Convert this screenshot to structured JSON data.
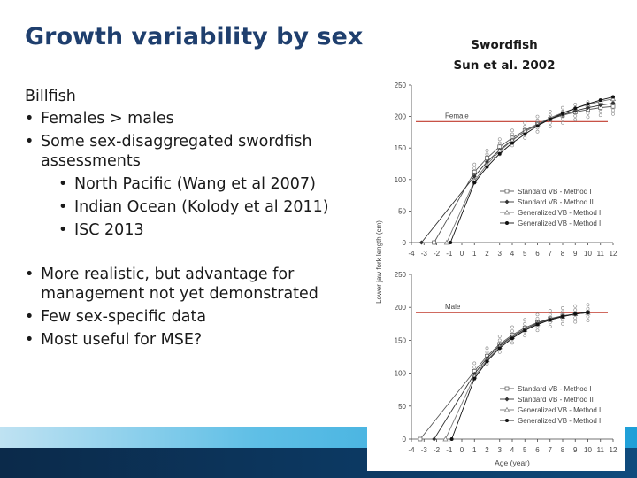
{
  "slide": {
    "title": "Growth variability by sex",
    "figure_caption_line1": "Swordfish",
    "figure_caption_line2": "Sun et al. 2002"
  },
  "content": {
    "heading": "Billfish",
    "bullets": [
      "Females > males",
      "Some sex-disaggregated swordfish assessments"
    ],
    "sub_bullets": [
      "North Pacific (Wang et al 2007)",
      "Indian Ocean (Kolody et al 2011)",
      "ISC 2013"
    ],
    "bullets2": [
      "More realistic, but advantage for management not yet demonstrated",
      "Few sex-specific data",
      "Most useful for MSE?"
    ]
  },
  "colors": {
    "title": "#1f3f6e",
    "reference_line": "#c0392b",
    "band_light": "#5fbfe6",
    "band_dark": "#0c3a64"
  },
  "chart_data": [
    {
      "type": "line",
      "panel_label": "Female",
      "ylabel": "Lower jaw fork length (cm)",
      "xlabel": "",
      "xlim": [
        -4,
        12
      ],
      "ylim": [
        0,
        250
      ],
      "x_ticks": [
        -4,
        -3,
        -2,
        -1,
        0,
        1,
        2,
        3,
        4,
        5,
        6,
        7,
        8,
        9,
        10,
        11,
        12
      ],
      "y_ticks": [
        0,
        50,
        100,
        150,
        200,
        250
      ],
      "reference_line_y": 192,
      "legend_position": "center-right",
      "series": [
        {
          "name": "Standard VB - Method I",
          "marker": "open-square",
          "x": [
            -2.2,
            1,
            2,
            3,
            4,
            5,
            6,
            7,
            8,
            9,
            10,
            11,
            12
          ],
          "y": [
            0,
            112,
            134,
            152,
            166,
            178,
            188,
            196,
            202,
            207,
            211,
            214,
            216
          ]
        },
        {
          "name": "Standard VB - Method II",
          "marker": "diamond",
          "x": [
            -3.2,
            1,
            2,
            3,
            4,
            5,
            6,
            7,
            8,
            9,
            10,
            11,
            12
          ],
          "y": [
            0,
            105,
            128,
            147,
            163,
            176,
            187,
            196,
            203,
            209,
            214,
            218,
            221
          ]
        },
        {
          "name": "Generalized VB - Method I",
          "marker": "open-triangle",
          "x": [
            -1.2,
            1,
            2,
            3,
            4,
            5,
            6,
            7,
            8,
            9,
            10,
            11,
            12
          ],
          "y": [
            0,
            98,
            124,
            145,
            162,
            176,
            188,
            198,
            206,
            213,
            219,
            224,
            228
          ]
        },
        {
          "name": "Generalized VB - Method II",
          "marker": "filled-circle",
          "x": [
            -0.9,
            1,
            2,
            3,
            4,
            5,
            6,
            7,
            8,
            9,
            10,
            11,
            12
          ],
          "y": [
            0,
            95,
            120,
            141,
            158,
            172,
            185,
            196,
            205,
            213,
            220,
            226,
            231
          ]
        }
      ]
    },
    {
      "type": "line",
      "panel_label": "Male",
      "ylabel": "Lower jaw fork length (cm)",
      "xlabel": "Age (year)",
      "xlim": [
        -4,
        12
      ],
      "ylim": [
        0,
        250
      ],
      "x_ticks": [
        -4,
        -3,
        -2,
        -1,
        0,
        1,
        2,
        3,
        4,
        5,
        6,
        7,
        8,
        9,
        10,
        11,
        12
      ],
      "y_ticks": [
        0,
        50,
        100,
        150,
        200,
        250
      ],
      "reference_line_y": 192,
      "legend_position": "bottom-right",
      "series": [
        {
          "name": "Standard VB - Method I",
          "marker": "open-square",
          "x": [
            -3.3,
            1,
            2,
            3,
            4,
            5,
            6,
            7,
            8,
            9,
            10
          ],
          "y": [
            0,
            103,
            126,
            144,
            158,
            169,
            177,
            183,
            187,
            190,
            192
          ]
        },
        {
          "name": "Standard VB - Method II",
          "marker": "diamond",
          "x": [
            -2.2,
            1,
            2,
            3,
            4,
            5,
            6,
            7,
            8,
            9,
            10
          ],
          "y": [
            0,
            99,
            123,
            142,
            156,
            167,
            176,
            182,
            187,
            190,
            193
          ]
        },
        {
          "name": "Generalized VB - Method I",
          "marker": "open-triangle",
          "x": [
            -1.3,
            1,
            2,
            3,
            4,
            5,
            6,
            7,
            8,
            9,
            10
          ],
          "y": [
            0,
            95,
            120,
            140,
            155,
            166,
            175,
            181,
            186,
            190,
            192
          ]
        },
        {
          "name": "Generalized VB - Method II",
          "marker": "filled-circle",
          "x": [
            -0.8,
            1,
            2,
            3,
            4,
            5,
            6,
            7,
            8,
            9,
            10
          ],
          "y": [
            0,
            92,
            118,
            138,
            153,
            165,
            174,
            181,
            186,
            190,
            192
          ]
        }
      ]
    }
  ]
}
